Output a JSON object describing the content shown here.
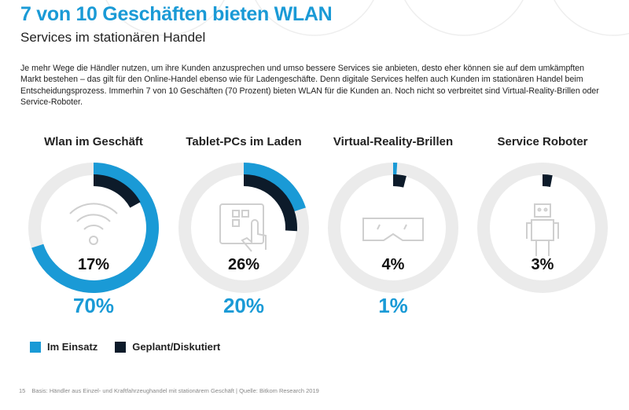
{
  "header": {
    "title": "7 von 10 Geschäften bieten WLAN",
    "subtitle": "Services im stationären Handel",
    "intro": "Je mehr Wege die Händler nutzen, um ihre Kunden anzusprechen und umso bessere Services sie anbieten, desto eher können sie auf dem umkämpften Markt bestehen – das gilt für den Online-Handel ebenso wie für Ladengeschäfte. Denn digitale Services helfen auch Kunden im stationären Handel beim Entscheidungsprozess. Immerhin 7 von 10 Geschäften (70 Prozent) bieten WLAN für die Kunden an. Noch nicht so verbreitet sind Virtual-Reality-Brillen oder Service-Roboter."
  },
  "chart_data": {
    "type": "donut",
    "legend_position": "bottom-left",
    "series_names": [
      "Im Einsatz",
      "Geplant/Diskutiert"
    ],
    "colors": {
      "im_einsatz": "#1a9ad6",
      "geplant": "#0d1b2a",
      "track": "#ebebeb"
    },
    "items": [
      {
        "label": "Wlan im Geschäft",
        "icon": "wifi-icon",
        "im_einsatz": 70,
        "geplant": 17,
        "im_einsatz_label": "70%",
        "geplant_label": "17%"
      },
      {
        "label": "Tablet-PCs im Laden",
        "icon": "tablet-icon",
        "im_einsatz": 20,
        "geplant": 26,
        "im_einsatz_label": "20%",
        "geplant_label": "26%"
      },
      {
        "label": "Virtual-Reality-Brillen",
        "icon": "vr-glasses-icon",
        "im_einsatz": 1,
        "geplant": 4,
        "im_einsatz_label": "1%",
        "geplant_label": "4%"
      },
      {
        "label": "Service Roboter",
        "icon": "robot-icon",
        "im_einsatz": 0,
        "geplant": 3,
        "im_einsatz_label": "",
        "geplant_label": "3%"
      }
    ]
  },
  "footer": {
    "page": "15",
    "source": "Basis: Händler aus Einzel- und Kraftfahrzeughandel mit stationärem Geschäft | Quelle: Bitkom Research 2019"
  }
}
